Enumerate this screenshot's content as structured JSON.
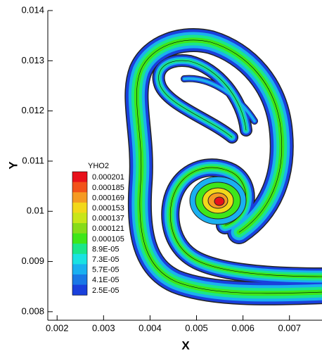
{
  "chart_data": {
    "type": "contour",
    "x_label": "X",
    "y_label": "Y",
    "xlim": [
      0.0018,
      0.0077
    ],
    "ylim": [
      0.00783,
      0.014
    ],
    "xticks": [
      0.002,
      0.003,
      0.004,
      0.005,
      0.006,
      0.007
    ],
    "yticks": [
      0.008,
      0.009,
      0.01,
      0.011,
      0.012,
      0.013,
      0.014
    ],
    "legend": {
      "title": "YHO2",
      "levels": [
        0.000201,
        0.000185,
        0.000169,
        0.000153,
        0.000137,
        0.000121,
        0.000105,
        {
          "value": 8.9e-05,
          "label": "8.9E-05"
        },
        {
          "value": 7.3e-05,
          "label": "7.3E-05"
        },
        {
          "value": 5.7e-05,
          "label": "5.7E-05"
        },
        {
          "value": 4.1e-05,
          "label": "4.1E-05"
        },
        {
          "value": 2.5e-05,
          "label": "2.5E-05"
        }
      ],
      "colors": [
        "#e8101a",
        "#f2521a",
        "#f59a23",
        "#f2d81a",
        "#c8e61a",
        "#86dc1a",
        "#3ee61a",
        "#1ae68a",
        "#1ae2e2",
        "#1ab0f0",
        "#1a78e6",
        "#1a40dc"
      ]
    }
  }
}
